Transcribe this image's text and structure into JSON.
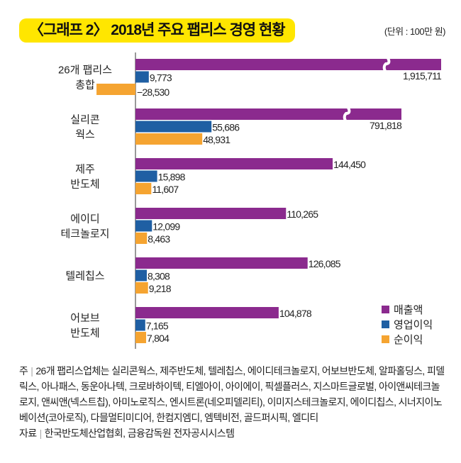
{
  "title": "〈그래프 2〉 2018년 주요 팹리스 경영 현황",
  "unit": "(단위 : 100만 원)",
  "chart_data": {
    "type": "bar",
    "orientation": "horizontal",
    "title": "〈그래프 2〉 2018년 주요 팹리스 경영 현황",
    "unit": "(단위 : 100만 원)",
    "categories": [
      [
        "26개 팹리스",
        "총합"
      ],
      [
        "실리콘",
        "웍스"
      ],
      [
        "제주",
        "반도체"
      ],
      [
        "에이디",
        "테크놀로지"
      ],
      [
        "텔레칩스"
      ],
      [
        "어보브",
        "반도체"
      ]
    ],
    "series": [
      {
        "name": "매출액",
        "color": "#8b2a8e",
        "values": [
          1915711,
          791818,
          144450,
          110265,
          126085,
          104878
        ],
        "labels": [
          "1,915,711",
          "791,818",
          "144,450",
          "110,265",
          "126,085",
          "104,878"
        ],
        "broken": [
          true,
          true,
          false,
          false,
          false,
          false
        ]
      },
      {
        "name": "영업이익",
        "color": "#1f5fa3",
        "values": [
          9773,
          55686,
          15898,
          12099,
          8308,
          7165
        ],
        "labels": [
          "9,773",
          "55,686",
          "15,898",
          "12,099",
          "8,308",
          "7,165"
        ]
      },
      {
        "name": "순이익",
        "color": "#f5a431",
        "values": [
          -28530,
          48931,
          11607,
          8463,
          9218,
          7804
        ],
        "labels": [
          "−28,530",
          "48,931",
          "11,607",
          "8,463",
          "9,218",
          "7,804"
        ]
      }
    ],
    "legend_position": "bottom-right",
    "grid": false
  },
  "notes": {
    "note_label": "주",
    "note_text": "26개 팹리스업체는 실리콘웍스, 제주반도체, 텔레칩스, 에이디테크놀로지, 어보브반도체, 알파홀딩스, 피델릭스, 아나패스, 동운아나텍, 크로바하이텍, 티엘아이, 아이에이, 픽셀플러스, 지스마트글로벌, 아이앤씨테크놀로지, 앤씨앤(넥스트칩), 아미노로직스, 엔시트론(네오피델리티), 이미지스테크놀로지, 에이디칩스, 시너지이노베이션(코아로직), 다믈멀티미디어, 한컴지엠디, 엠텍비전, 골드퍼시픽, 엘디티",
    "source_label": "자료",
    "source_text": "한국반도체산업협회, 금융감독원 전자공시시스템"
  }
}
